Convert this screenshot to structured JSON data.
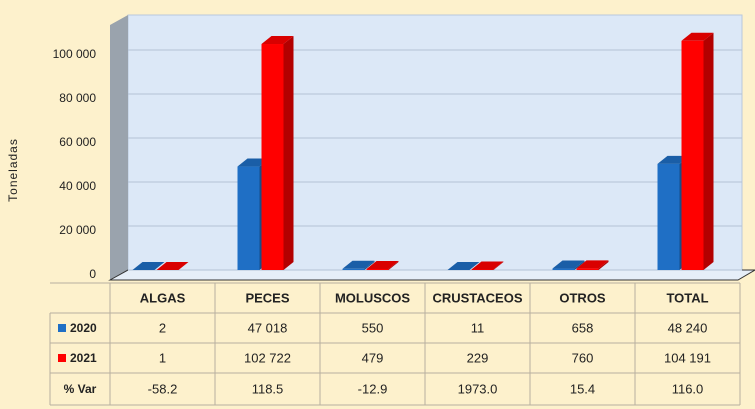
{
  "chart_data": {
    "type": "bar",
    "y_label": "Toneladas",
    "categories": [
      "ALGAS",
      "PECES",
      "MOLUSCOS",
      "CRUSTACEOS",
      "OTROS",
      "TOTAL"
    ],
    "series": [
      {
        "name": "2020",
        "color": "#1f6fc5",
        "values": [
          2,
          47018,
          550,
          11,
          658,
          48240
        ],
        "value_labels": [
          "2",
          "47 018",
          "550",
          "11",
          "658",
          "48 240"
        ]
      },
      {
        "name": "2021",
        "color": "#ff0000",
        "values": [
          1,
          102722,
          479,
          229,
          760,
          104191
        ],
        "value_labels": [
          "1",
          "102 722",
          "479",
          "229",
          "760",
          "104 191"
        ]
      }
    ],
    "pct_var": {
      "label": "% Var",
      "values": [
        -58.2,
        118.5,
        -12.9,
        1973,
        15.4,
        116
      ],
      "value_labels": [
        "-58.2",
        "118.5",
        "-12.9",
        "1973.0",
        "15.4",
        "116.0"
      ]
    },
    "ylim": [
      0,
      115000
    ],
    "yticks": [
      0,
      {
        "value": 20000,
        "label": "20 000"
      },
      {
        "value": 40000,
        "label": "40 000"
      },
      {
        "value": 60000,
        "label": "60 000"
      },
      {
        "value": 80000,
        "label": "80 000"
      },
      {
        "value": 100000,
        "label": "100 000"
      }
    ],
    "grid": true
  }
}
